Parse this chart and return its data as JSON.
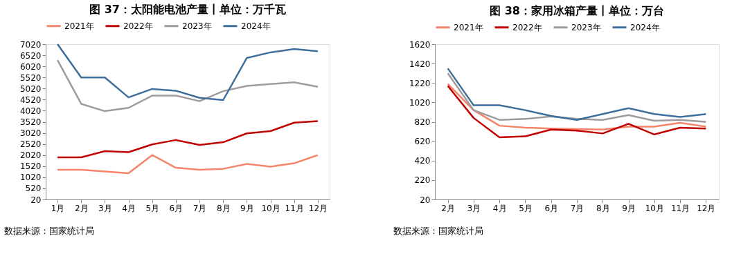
{
  "chart_data": [
    {
      "type": "line",
      "title": "图 37：太阳能电池产量丨单位：万千瓦",
      "categories": [
        "1月",
        "2月",
        "3月",
        "4月",
        "5月",
        "6月",
        "7月",
        "8月",
        "9月",
        "10月",
        "11月",
        "12月"
      ],
      "series": [
        {
          "name": "2021年",
          "color": "#f4846a",
          "values": [
            1360,
            1360,
            1280,
            1200,
            2020,
            1450,
            1360,
            1400,
            1620,
            1500,
            1650,
            2020
          ]
        },
        {
          "name": "2022年",
          "color": "#c00000",
          "values": [
            1920,
            1920,
            2200,
            2150,
            2500,
            2700,
            2480,
            2600,
            3000,
            3100,
            3480,
            3550
          ]
        },
        {
          "name": "2023年",
          "color": "#a09a9c",
          "values": [
            6300,
            4330,
            4000,
            4150,
            4700,
            4700,
            4450,
            4900,
            5140,
            5220,
            5300,
            5100
          ]
        },
        {
          "name": "2024年",
          "color": "#3e6e9b",
          "values": [
            7020,
            5520,
            5520,
            4620,
            5000,
            4920,
            4600,
            4500,
            6400,
            6650,
            6800,
            6700
          ]
        }
      ],
      "ylim": [
        20,
        7020
      ],
      "yticks": [
        20,
        520,
        1020,
        1520,
        2020,
        2520,
        3020,
        3520,
        4020,
        4520,
        5020,
        5520,
        6020,
        6520,
        7020
      ],
      "grid": false,
      "legend": "top",
      "marker": "none",
      "line_style": "solid",
      "annotations": [
        "数据来源：国家统计局"
      ]
    },
    {
      "type": "line",
      "title": "图 38：家用冰箱产量丨单位：万台",
      "categories": [
        "2月",
        "3月",
        "4月",
        "5月",
        "6月",
        "7月",
        "8月",
        "9月",
        "10月",
        "11月",
        "12月"
      ],
      "series": [
        {
          "name": "2021年",
          "color": "#f4846a",
          "values": [
            1210,
            940,
            780,
            760,
            750,
            745,
            740,
            770,
            770,
            810,
            770
          ]
        },
        {
          "name": "2022年",
          "color": "#c00000",
          "values": [
            1190,
            860,
            660,
            670,
            740,
            730,
            700,
            800,
            690,
            760,
            750
          ]
        },
        {
          "name": "2023年",
          "color": "#a09a9c",
          "values": [
            1320,
            940,
            840,
            850,
            875,
            850,
            840,
            890,
            830,
            840,
            820
          ]
        },
        {
          "name": "2024年",
          "color": "#3e6e9b",
          "values": [
            1370,
            990,
            990,
            940,
            880,
            840,
            900,
            960,
            900,
            870,
            900
          ]
        }
      ],
      "ylim": [
        20,
        1620
      ],
      "yticks": [
        20,
        220,
        420,
        620,
        820,
        1020,
        1220,
        1420,
        1620
      ],
      "grid": false,
      "legend": "top",
      "marker": "none",
      "line_style": "solid",
      "annotations": [
        "数据来源：国家统计局"
      ]
    }
  ]
}
